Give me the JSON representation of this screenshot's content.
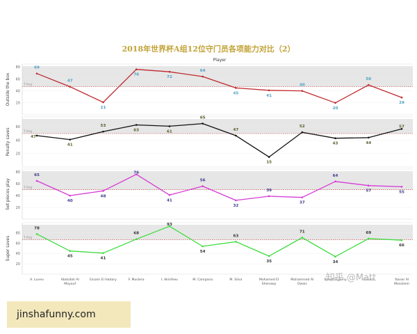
{
  "chart_data": {
    "type": "line",
    "title": "2018年世界杯A组12位守门员各项能力对比（2）",
    "column_header": "Player",
    "players": [
      [
        "A. Lunev"
      ],
      [
        "Abdullah Al",
        "Mayouf"
      ],
      [
        "Essam El Hadary"
      ],
      [
        "F. Muslera"
      ],
      [
        "I. Akinfeev"
      ],
      [
        "M. Campana"
      ],
      [
        "M. Silva"
      ],
      [
        "Mohamed El",
        "Shenawy"
      ],
      [
        "Mohammed Al",
        "Owais"
      ],
      [
        "Sherif Ekramy"
      ],
      [
        "Gabuzi"
      ],
      [
        "Yasser Al",
        "Mosailem"
      ]
    ],
    "average_label": "T.Avg",
    "series": [
      {
        "name": "Outside the box",
        "color": "#c0282d",
        "label_color": "#4a9fc0",
        "ylim": [
          0,
          85
        ],
        "ticks": [
          20,
          40,
          60,
          80
        ],
        "average": 47,
        "values": [
          69,
          47,
          21,
          76,
          72,
          64,
          45,
          41,
          40,
          20,
          50,
          29
        ],
        "labels": [
          "69",
          "47",
          "21",
          "76",
          "72",
          "64",
          "45",
          "41",
          "40",
          "20",
          "50",
          "29"
        ]
      },
      {
        "name": "Penalty saves",
        "color": "#111111",
        "label_color": "#5a5a2a",
        "ylim": [
          0,
          75
        ],
        "ticks": [
          20,
          40,
          60
        ],
        "average": 50,
        "values": [
          47,
          41,
          53,
          63,
          61,
          65,
          47,
          15,
          52,
          43,
          44,
          57
        ],
        "labels": [
          "47",
          "41",
          "53",
          "63",
          "61",
          "65",
          "47",
          "15",
          "52",
          "43",
          "44",
          "57"
        ]
      },
      {
        "name": "Set pieces play",
        "color": "#d63ad6",
        "label_color": "#3a3a8a",
        "ylim": [
          0,
          85
        ],
        "ticks": [
          20,
          40,
          60,
          80
        ],
        "average": 50,
        "values": [
          65,
          40,
          48,
          76,
          41,
          56,
          32,
          39,
          37,
          64,
          57,
          55
        ],
        "labels": [
          "65",
          "40",
          "48",
          "76",
          "41",
          "56",
          "32",
          "39",
          "37",
          "64",
          "57",
          "55"
        ]
      },
      {
        "name": "Super saves",
        "color": "#3ddc3d",
        "label_color": "#333333",
        "ylim": [
          0,
          100
        ],
        "ticks": [
          20,
          40,
          60,
          80
        ],
        "average": 67,
        "values": [
          78,
          45,
          41,
          68,
          93,
          54,
          63,
          35,
          71,
          34,
          69,
          66
        ],
        "labels": [
          "78",
          "45",
          "41",
          "68",
          "93",
          "54",
          "63",
          "35",
          "71",
          "34",
          "69",
          "66"
        ]
      }
    ]
  },
  "watermark": "知乎 @Matt",
  "source_text": "jinshafunny.com"
}
